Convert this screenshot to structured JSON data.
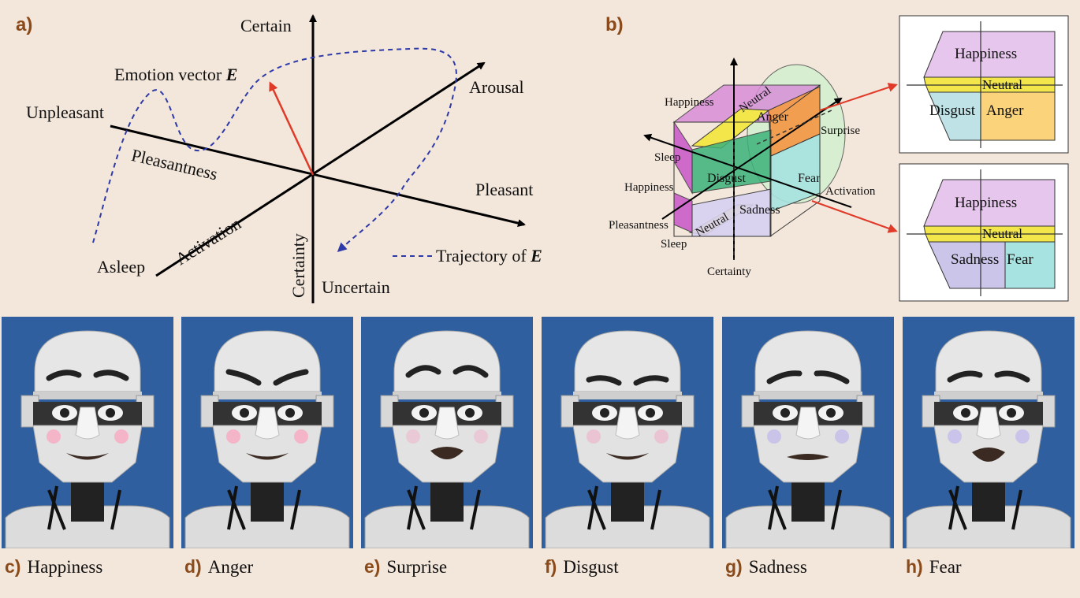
{
  "panel_a": {
    "tag": "a)",
    "certain": "Certain",
    "uncertain": "Uncertain",
    "certainty": "Certainty",
    "emotion_vector_text": "Emotion vector",
    "emotion_vector_symbol": "E",
    "unpleasant": "Unpleasant",
    "pleasantness": "Pleasantness",
    "pleasant": "Pleasant",
    "arousal": "Arousal",
    "asleep": "Asleep",
    "activation": "Activation",
    "trajectory_text": "Trajectory of",
    "trajectory_symbol": "E",
    "colors": {
      "axis": "#000000",
      "vector": "#e03a28",
      "trajectory": "#2e3aa8"
    }
  },
  "panel_b": {
    "tag": "b)",
    "cube_labels": {
      "happiness_top": "Happiness",
      "neutral_top": "Neutral",
      "anger": "Anger",
      "surprise": "Surprise",
      "sleep_top": "Sleep",
      "happiness_mid": "Happiness",
      "disgust": "Disgust",
      "fear": "Fear",
      "activation": "Activation",
      "pleasantness": "Pleasantness",
      "neutral_low": "Neutral",
      "sadness": "Sadness",
      "sleep_low": "Sleep",
      "certainty": "Certainty"
    },
    "slice_top": {
      "happiness": "Happiness",
      "neutral": "Neutral",
      "disgust": "Disgust",
      "anger": "Anger"
    },
    "slice_bottom": {
      "happiness": "Happiness",
      "neutral": "Neutral",
      "sadness": "Sadness",
      "fear": "Fear"
    },
    "colors": {
      "happiness": "#e6c6ec",
      "neutral": "#f2e64a",
      "disgust": "#bfe2e6",
      "anger": "#fbd37a",
      "sadness": "#cbc5ea",
      "fear": "#a7e3e0",
      "surprise": "#d5f1d0",
      "arrow": "#e03a28"
    }
  },
  "photos": [
    {
      "letter": "c)",
      "label": "Happiness",
      "expression": "happiness"
    },
    {
      "letter": "d)",
      "label": "Anger",
      "expression": "anger"
    },
    {
      "letter": "e)",
      "label": "Surprise",
      "expression": "surprise"
    },
    {
      "letter": "f)",
      "label": "Disgust",
      "expression": "disgust"
    },
    {
      "letter": "g)",
      "label": "Sadness",
      "expression": "sadness"
    },
    {
      "letter": "h)",
      "label": "Fear",
      "expression": "fear"
    }
  ]
}
